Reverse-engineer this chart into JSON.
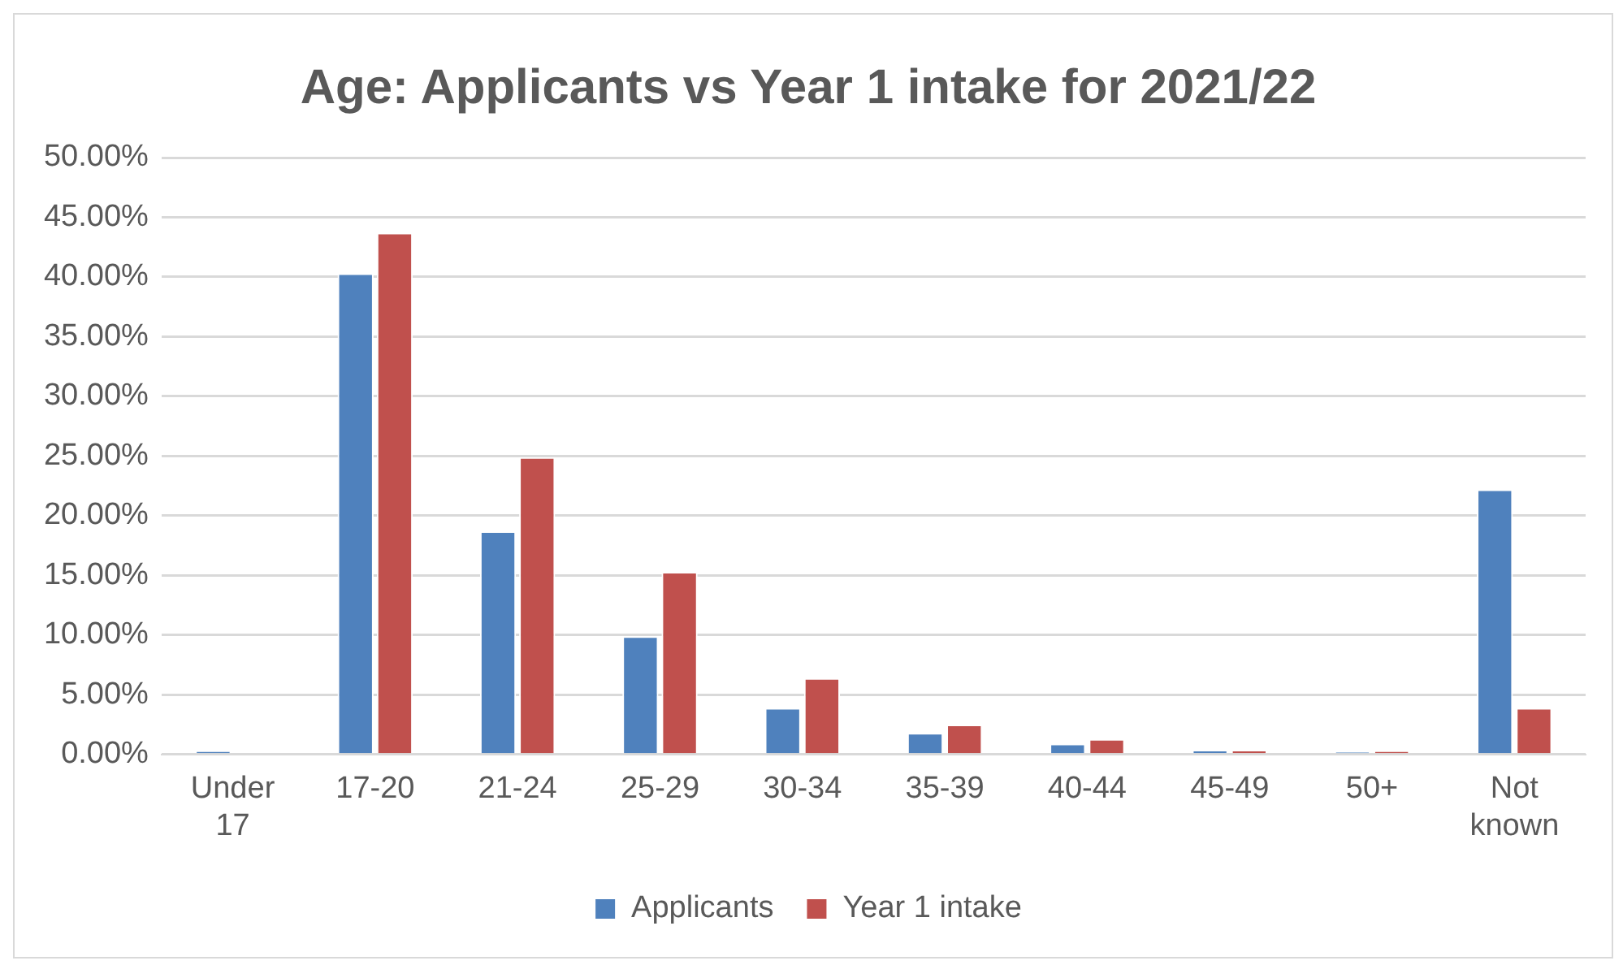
{
  "chart_data": {
    "type": "bar",
    "title": "Age: Applicants vs Year 1 intake for 2021/22",
    "categories": [
      "Under 17",
      "17-20",
      "21-24",
      "25-29",
      "30-34",
      "35-39",
      "40-44",
      "45-49",
      "50+",
      "Not known"
    ],
    "series": [
      {
        "name": "Applicants",
        "color": "#4f81bd",
        "values": [
          0.3,
          40.3,
          18.7,
          9.9,
          3.9,
          1.8,
          0.9,
          0.4,
          0.2,
          22.2
        ]
      },
      {
        "name": "Year 1 intake",
        "color": "#c0504d",
        "values": [
          0,
          43.7,
          24.9,
          15.3,
          6.4,
          2.5,
          1.3,
          0.4,
          0.3,
          3.9
        ]
      }
    ],
    "ylim": [
      0,
      50
    ],
    "yticks": [
      {
        "value": 0,
        "label": "0.00%"
      },
      {
        "value": 5,
        "label": "5.00%"
      },
      {
        "value": 10,
        "label": "10.00%"
      },
      {
        "value": 15,
        "label": "15.00%"
      },
      {
        "value": 20,
        "label": "20.00%"
      },
      {
        "value": 25,
        "label": "25.00%"
      },
      {
        "value": 30,
        "label": "30.00%"
      },
      {
        "value": 35,
        "label": "35.00%"
      },
      {
        "value": 40,
        "label": "40.00%"
      },
      {
        "value": 45,
        "label": "45.00%"
      },
      {
        "value": 50,
        "label": "50.00%"
      }
    ],
    "grid": "y",
    "legend": "bottom"
  }
}
